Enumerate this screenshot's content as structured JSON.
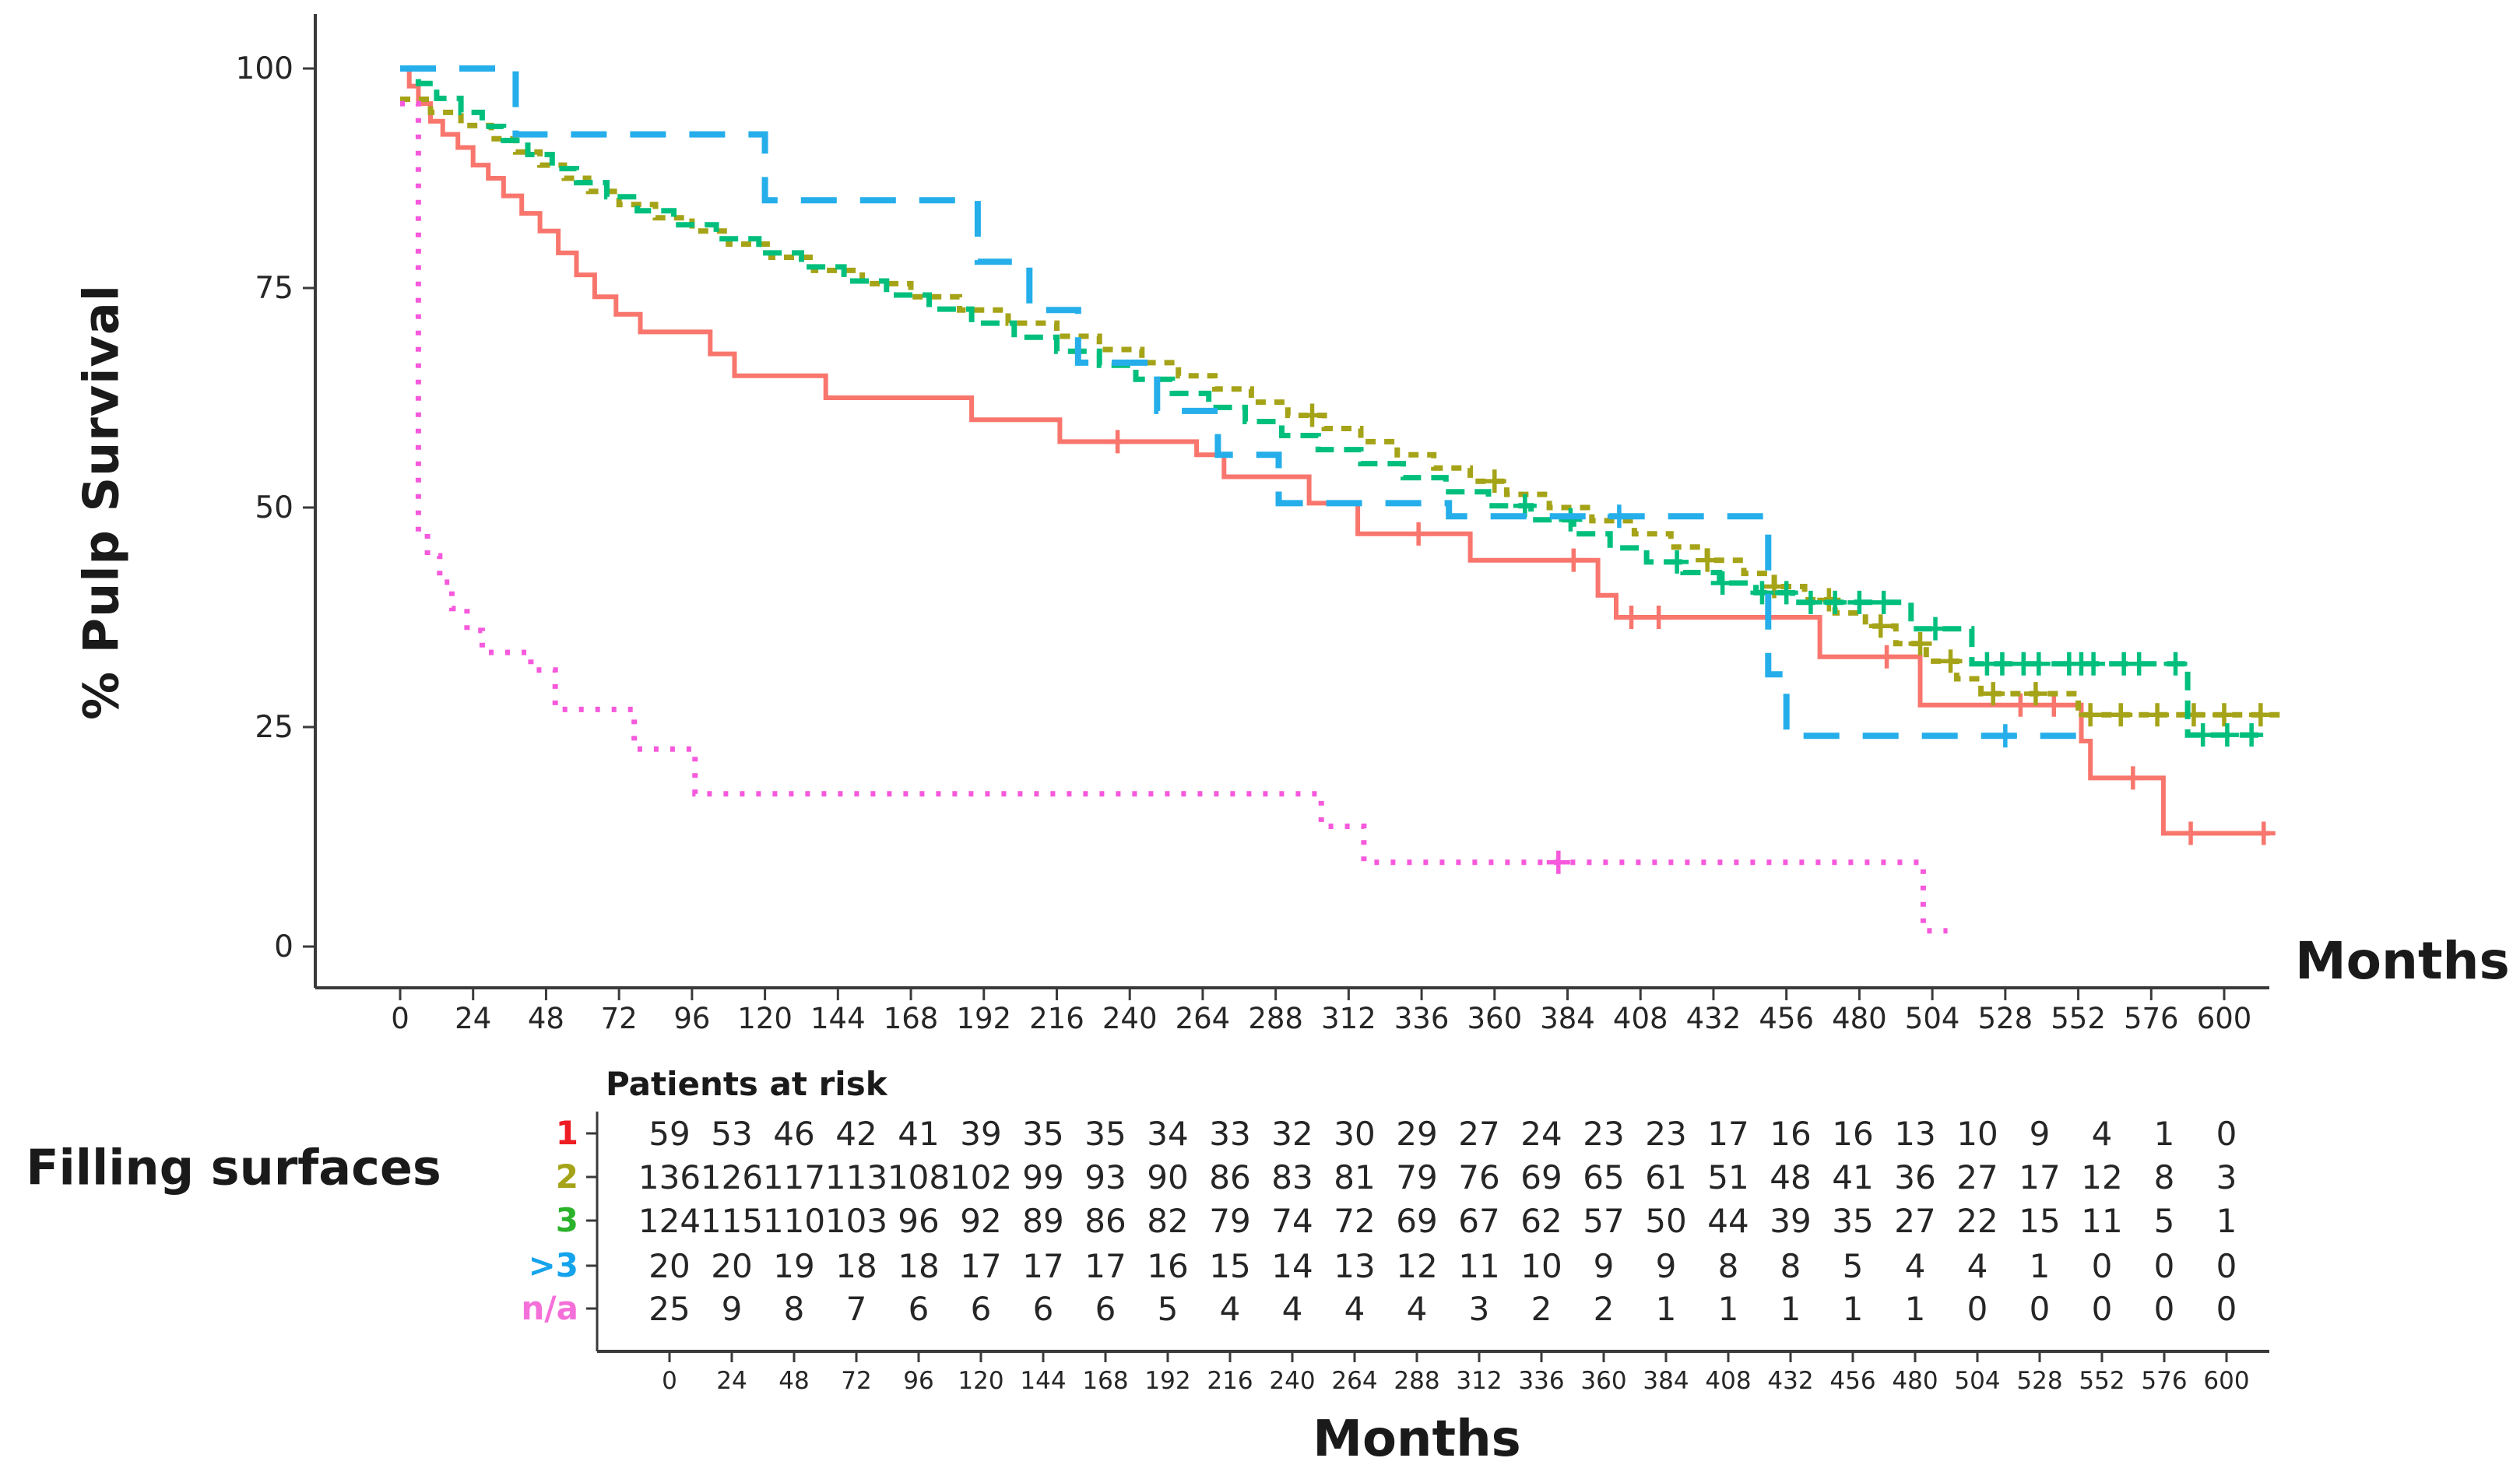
{
  "figure": {
    "y_axis_title": "% Pulp Survival",
    "x_axis_title_right": "Months",
    "x_axis_title_bottom": "Months",
    "risk_table_title": "Patients at risk",
    "risk_group_title": "Filling surfaces"
  },
  "chart_data": {
    "type": "line",
    "subtype": "kaplan-meier-step",
    "title": "",
    "xlabel": "Months",
    "ylabel": "% Pulp Survival",
    "xlim": [
      0,
      624
    ],
    "ylim": [
      0,
      100
    ],
    "x_ticks": [
      0,
      24,
      48,
      72,
      96,
      120,
      144,
      168,
      192,
      216,
      240,
      264,
      288,
      312,
      336,
      360,
      384,
      408,
      432,
      456,
      480,
      504,
      528,
      552,
      576,
      600
    ],
    "y_ticks": [
      0,
      25,
      50,
      75,
      100
    ],
    "grid": false,
    "legend_position": "none",
    "axis_color": "#3a3a3a",
    "tick_text_color": "#262626",
    "series": [
      {
        "name": "1",
        "color": "#F8766D",
        "label_color": "#EE1D23",
        "dash": "none",
        "stroke_width": 6,
        "steps": [
          [
            0,
            100
          ],
          [
            3,
            98
          ],
          [
            6,
            96
          ],
          [
            10,
            94
          ],
          [
            14,
            92.5
          ],
          [
            19,
            91
          ],
          [
            24,
            89
          ],
          [
            29,
            87.5
          ],
          [
            34,
            85.5
          ],
          [
            40,
            83.5
          ],
          [
            46,
            81.5
          ],
          [
            52,
            79
          ],
          [
            58,
            76.5
          ],
          [
            64,
            74
          ],
          [
            71,
            72
          ],
          [
            79,
            70
          ],
          [
            102,
            67.5
          ],
          [
            110,
            65
          ],
          [
            140,
            62.5
          ],
          [
            188,
            60
          ],
          [
            217,
            57.5
          ],
          [
            262,
            56
          ],
          [
            271,
            53.5
          ],
          [
            299,
            50.5
          ],
          [
            315,
            47
          ],
          [
            352,
            44
          ],
          [
            394,
            40
          ],
          [
            400,
            37.5
          ],
          [
            467,
            33
          ],
          [
            500,
            27.5
          ],
          [
            553,
            23.4
          ],
          [
            556,
            19.2
          ],
          [
            580,
            12.9
          ],
          [
            615,
            12.9
          ]
        ],
        "censors": [
          [
            236,
            57.5
          ],
          [
            335,
            47
          ],
          [
            386,
            44
          ],
          [
            405,
            37.5
          ],
          [
            414,
            37.5
          ],
          [
            489,
            33
          ],
          [
            533,
            27.5
          ],
          [
            544,
            27.5
          ],
          [
            570,
            19.2
          ],
          [
            589,
            12.9
          ],
          [
            613,
            12.9
          ]
        ]
      },
      {
        "name": "2",
        "color": "#A5A317",
        "label_color": "#A5A317",
        "dash": "13 11",
        "stroke_width": 7,
        "steps": [
          [
            0,
            96.5
          ],
          [
            10,
            95
          ],
          [
            20,
            93.5
          ],
          [
            30,
            92
          ],
          [
            38,
            90.5
          ],
          [
            46,
            89
          ],
          [
            54,
            87.5
          ],
          [
            62,
            86
          ],
          [
            72,
            84.5
          ],
          [
            84,
            83
          ],
          [
            96,
            81.5
          ],
          [
            108,
            80
          ],
          [
            122,
            78.5
          ],
          [
            136,
            77
          ],
          [
            152,
            75.5
          ],
          [
            168,
            74
          ],
          [
            184,
            72.5
          ],
          [
            200,
            71
          ],
          [
            216,
            69.5
          ],
          [
            230,
            68
          ],
          [
            244,
            66.5
          ],
          [
            256,
            65
          ],
          [
            268,
            63.5
          ],
          [
            280,
            62
          ],
          [
            292,
            60.5
          ],
          [
            304,
            59
          ],
          [
            316,
            57.5
          ],
          [
            328,
            56
          ],
          [
            340,
            54.5
          ],
          [
            352,
            53
          ],
          [
            364,
            51.5
          ],
          [
            378,
            50
          ],
          [
            392,
            48.5
          ],
          [
            406,
            47
          ],
          [
            418,
            45.5
          ],
          [
            430,
            44
          ],
          [
            442,
            42.5
          ],
          [
            452,
            41
          ],
          [
            462,
            39.5
          ],
          [
            472,
            38
          ],
          [
            482,
            36.5
          ],
          [
            492,
            34.5
          ],
          [
            502,
            32.5
          ],
          [
            512,
            30.5
          ],
          [
            520,
            28.8
          ],
          [
            552,
            26.4
          ],
          [
            620,
            26.4
          ]
        ],
        "censors": [
          [
            300,
            60.5
          ],
          [
            360,
            53
          ],
          [
            430,
            44
          ],
          [
            452,
            41
          ],
          [
            470,
            39.5
          ],
          [
            487,
            36.5
          ],
          [
            500,
            34.5
          ],
          [
            510,
            32.5
          ],
          [
            524,
            28.8
          ],
          [
            538,
            28.8
          ],
          [
            556,
            26.4
          ],
          [
            566,
            26.4
          ],
          [
            578,
            26.4
          ],
          [
            590,
            26.4
          ],
          [
            600,
            26.4
          ],
          [
            612,
            26.4
          ]
        ]
      },
      {
        "name": "3",
        "color": "#00BF7D",
        "label_color": "#2BB22B",
        "dash": "24 13",
        "stroke_width": 7,
        "steps": [
          [
            0,
            100
          ],
          [
            6,
            98.3
          ],
          [
            12,
            96.6
          ],
          [
            20,
            95
          ],
          [
            27,
            93.4
          ],
          [
            34,
            91.8
          ],
          [
            42,
            90.2
          ],
          [
            50,
            88.6
          ],
          [
            58,
            87
          ],
          [
            68,
            85.4
          ],
          [
            78,
            83.8
          ],
          [
            90,
            82.2
          ],
          [
            104,
            80.6
          ],
          [
            118,
            79
          ],
          [
            132,
            77.4
          ],
          [
            146,
            75.8
          ],
          [
            160,
            74.2
          ],
          [
            174,
            72.6
          ],
          [
            188,
            71
          ],
          [
            202,
            69.4
          ],
          [
            216,
            67.8
          ],
          [
            230,
            66.2
          ],
          [
            242,
            64.6
          ],
          [
            254,
            63
          ],
          [
            266,
            61.4
          ],
          [
            278,
            59.8
          ],
          [
            290,
            58.2
          ],
          [
            302,
            56.6
          ],
          [
            316,
            55
          ],
          [
            330,
            53.4
          ],
          [
            344,
            51.8
          ],
          [
            358,
            50.2
          ],
          [
            372,
            48.6
          ],
          [
            386,
            47
          ],
          [
            398,
            45.4
          ],
          [
            410,
            43.8
          ],
          [
            422,
            42.6
          ],
          [
            434,
            41.4
          ],
          [
            446,
            40.3
          ],
          [
            458,
            39.2
          ],
          [
            497,
            36.2
          ],
          [
            517,
            32.2
          ],
          [
            588,
            24.1
          ],
          [
            614,
            24.1
          ]
        ],
        "censors": [
          [
            370,
            50.2
          ],
          [
            385,
            48.6
          ],
          [
            420,
            43.8
          ],
          [
            435,
            41.4
          ],
          [
            448,
            40.3
          ],
          [
            456,
            40.3
          ],
          [
            464,
            39.2
          ],
          [
            472,
            39.2
          ],
          [
            480,
            39.2
          ],
          [
            488,
            39.2
          ],
          [
            505,
            36.2
          ],
          [
            522,
            32.2
          ],
          [
            527,
            32.2
          ],
          [
            534,
            32.2
          ],
          [
            539,
            32.2
          ],
          [
            549,
            32.2
          ],
          [
            553,
            32.2
          ],
          [
            557,
            32.2
          ],
          [
            567,
            32.2
          ],
          [
            572,
            32.2
          ],
          [
            584,
            32.2
          ],
          [
            593,
            24.1
          ],
          [
            601,
            24.1
          ],
          [
            609,
            24.1
          ]
        ],
        "censors_note": "dense censor cluster months 420-615"
      },
      {
        "name": ">3",
        "color": "#25AEEA",
        "label_color": "#14A3EC",
        "dash": "46 30",
        "stroke_width": 8,
        "steps": [
          [
            0,
            100
          ],
          [
            38,
            92.5
          ],
          [
            120,
            85
          ],
          [
            190,
            78
          ],
          [
            207,
            72.5
          ],
          [
            223,
            66.5
          ],
          [
            249,
            61
          ],
          [
            269,
            56
          ],
          [
            289,
            50.5
          ],
          [
            345,
            49
          ],
          [
            450,
            31
          ],
          [
            456,
            24
          ],
          [
            553,
            24
          ]
        ],
        "censors": [
          [
            401,
            49
          ],
          [
            528,
            24
          ]
        ]
      },
      {
        "name": "n/a",
        "color": "#F659DC",
        "label_color": "#F56FD9",
        "dash": "6 15",
        "stroke_width": 7,
        "steps": [
          [
            0,
            96
          ],
          [
            6,
            47
          ],
          [
            9,
            44.5
          ],
          [
            13,
            41.5
          ],
          [
            17,
            38.5
          ],
          [
            22,
            36
          ],
          [
            27,
            33.5
          ],
          [
            43,
            31.5
          ],
          [
            51,
            27
          ],
          [
            77,
            22.5
          ],
          [
            97,
            17.4
          ],
          [
            303,
            13.7
          ],
          [
            317,
            9.6
          ],
          [
            500,
            9.6
          ],
          [
            501,
            1.8
          ],
          [
            509,
            1.8
          ]
        ],
        "censors": [
          [
            381,
            9.6
          ]
        ]
      }
    ],
    "risk_table": {
      "title": "Patients at risk",
      "group_label": "Filling surfaces",
      "x_label": "Months",
      "x_ticks": [
        0,
        24,
        48,
        72,
        96,
        120,
        144,
        168,
        192,
        216,
        240,
        264,
        288,
        312,
        336,
        360,
        384,
        408,
        432,
        456,
        480,
        504,
        528,
        552,
        576,
        600
      ],
      "rows": [
        {
          "label": "1",
          "color": "#EE1D23",
          "counts": [
            59,
            53,
            46,
            42,
            41,
            39,
            35,
            35,
            34,
            33,
            32,
            30,
            29,
            27,
            24,
            23,
            23,
            17,
            16,
            16,
            13,
            10,
            9,
            4,
            1,
            0
          ]
        },
        {
          "label": "2",
          "color": "#A5A317",
          "counts": [
            136,
            126,
            117,
            113,
            108,
            102,
            99,
            93,
            90,
            86,
            83,
            81,
            79,
            76,
            69,
            65,
            61,
            51,
            48,
            41,
            36,
            27,
            17,
            12,
            8,
            3
          ]
        },
        {
          "label": "3",
          "color": "#2BB22B",
          "counts": [
            124,
            115,
            110,
            103,
            96,
            92,
            89,
            86,
            82,
            79,
            74,
            72,
            69,
            67,
            62,
            57,
            50,
            44,
            39,
            35,
            27,
            22,
            15,
            11,
            5,
            1
          ]
        },
        {
          "label": ">3",
          "color": "#14A3EC",
          "counts": [
            20,
            20,
            19,
            18,
            18,
            17,
            17,
            17,
            16,
            15,
            14,
            13,
            12,
            11,
            10,
            9,
            9,
            8,
            8,
            5,
            4,
            4,
            1,
            0,
            0,
            0
          ]
        },
        {
          "label": "n/a",
          "color": "#F56FD9",
          "counts": [
            25,
            9,
            8,
            7,
            6,
            6,
            6,
            6,
            5,
            4,
            4,
            4,
            4,
            3,
            2,
            2,
            1,
            1,
            1,
            1,
            1,
            0,
            0,
            0,
            0,
            0
          ]
        }
      ]
    }
  }
}
